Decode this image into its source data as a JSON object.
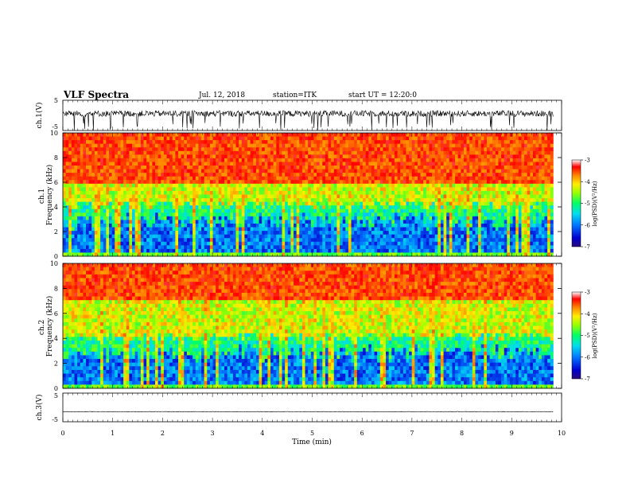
{
  "header": {
    "title": "VLF Spectra",
    "date": "Jul. 12, 2018",
    "station": "station=ITK",
    "start": "start UT = 12:20:0"
  },
  "chart_data": [
    {
      "type": "line",
      "name": "ch1-waveform",
      "ylabel": "ch.1(V)",
      "xlim": [
        0,
        10
      ],
      "ylim": [
        -5,
        5
      ],
      "yticks": [
        "5",
        "-5"
      ],
      "x_end_min": 9.83,
      "baseline_v": 0.6,
      "noise_v": 1.0,
      "spike_v": -5
    },
    {
      "type": "heatmap",
      "name": "ch1-spectrogram",
      "ylabel": "ch.1 Frequency (kHz)",
      "xlim": [
        0,
        10
      ],
      "ylim": [
        0,
        10
      ],
      "yticks": [
        "0",
        "2",
        "4",
        "6",
        "8",
        "10"
      ],
      "x_end_min": 9.83,
      "colorbar": {
        "label": "log(PSD)(V²/Hz)",
        "range": [
          -7,
          -3
        ],
        "ticks": [
          "-3",
          "-4",
          "-5",
          "-6",
          "-7"
        ]
      },
      "boundary_khz": {
        "low": 3.5,
        "mid": 4.5,
        "high": 6.0
      }
    },
    {
      "type": "heatmap",
      "name": "ch2-spectrogram",
      "ylabel": "ch.2 Frequency (kHz)",
      "xlim": [
        0,
        10
      ],
      "ylim": [
        0,
        10
      ],
      "yticks": [
        "0",
        "2",
        "4",
        "6",
        "8",
        "10"
      ],
      "x_end_min": 9.83,
      "colorbar": {
        "label": "log(PSD)(V²/Hz)",
        "range": [
          -7,
          -3
        ],
        "ticks": [
          "-3",
          "-4",
          "-5",
          "-6",
          "-7"
        ]
      },
      "boundary_khz": {
        "low": 3.5,
        "mid": 4.5,
        "high": 7.0
      }
    },
    {
      "type": "line",
      "name": "ch3-waveform",
      "ylabel": "ch.3(V)",
      "xlim": [
        0,
        10
      ],
      "ylim": [
        -5,
        5
      ],
      "yticks": [
        "5",
        "-5"
      ],
      "x_end_min": 9.83,
      "baseline_v": -1.5,
      "noise_v": 0.1
    }
  ],
  "xaxis": {
    "label": "Time (min)",
    "ticks": [
      "0",
      "1",
      "2",
      "3",
      "4",
      "5",
      "6",
      "7",
      "8",
      "9",
      "10"
    ]
  },
  "colors": {
    "colormap": [
      "#2a0a7a",
      "#0000c8",
      "#0066ff",
      "#00ccff",
      "#00ff88",
      "#66ff00",
      "#ffff00",
      "#ffaa00",
      "#ff3300",
      "#ff0000",
      "#ffffff"
    ]
  }
}
